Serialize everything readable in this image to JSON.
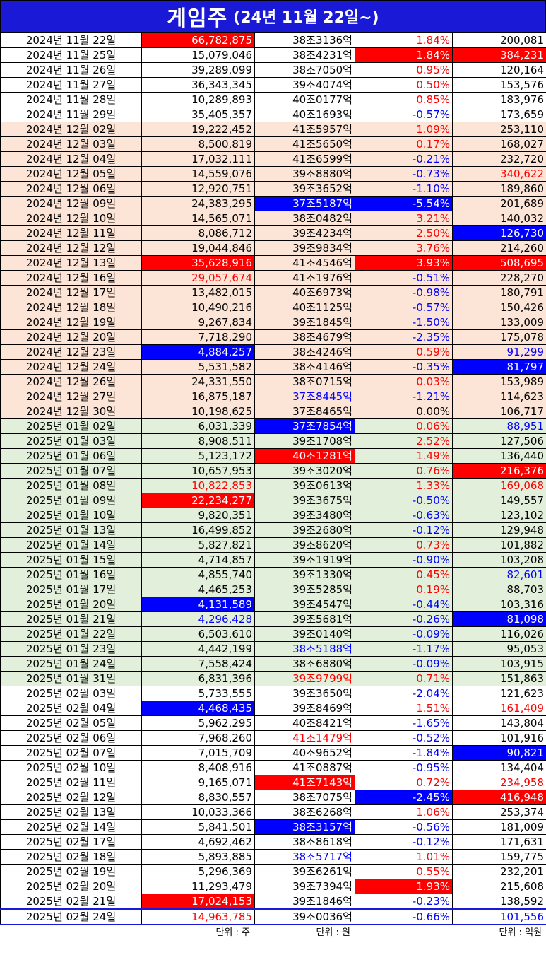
{
  "title": {
    "main": "게임주",
    "sub": "(24년 11월 22일~)"
  },
  "colors": {
    "red": "#ff0000",
    "blue": "#0000ff",
    "title_bg": "#1a1ad6",
    "peach": "#fce4d6",
    "green": "#e2efda"
  },
  "rows": [
    {
      "date": "2024년 11월 22일",
      "volume": "66,782,875",
      "cap": "38조3136억",
      "change": "1.84%",
      "amount": "200,081",
      "g": "a",
      "vs": "hl-red",
      "cs": "",
      "chs": "t-red",
      "as": ""
    },
    {
      "date": "2024년 11월 25일",
      "volume": "15,079,046",
      "cap": "38조4231억",
      "change": "1.84%",
      "amount": "384,231",
      "g": "a",
      "vs": "",
      "cs": "",
      "chs": "hl-red",
      "as": "hl-red"
    },
    {
      "date": "2024년 11월 26일",
      "volume": "39,289,099",
      "cap": "38조7050억",
      "change": "0.95%",
      "amount": "120,164",
      "g": "a",
      "vs": "",
      "cs": "",
      "chs": "t-red",
      "as": ""
    },
    {
      "date": "2024년 11월 27일",
      "volume": "36,343,345",
      "cap": "39조4074억",
      "change": "0.50%",
      "amount": "153,576",
      "g": "a",
      "vs": "",
      "cs": "",
      "chs": "t-red",
      "as": ""
    },
    {
      "date": "2024년 11월 28일",
      "volume": "10,289,893",
      "cap": "40조0177억",
      "change": "0.85%",
      "amount": "183,976",
      "g": "a",
      "vs": "",
      "cs": "",
      "chs": "t-red",
      "as": ""
    },
    {
      "date": "2024년 11월 29일",
      "volume": "35,405,357",
      "cap": "40조1693억",
      "change": "-0.57%",
      "amount": "173,659",
      "g": "a",
      "vs": "",
      "cs": "",
      "chs": "t-blue",
      "as": ""
    },
    {
      "date": "2024년 12월 02일",
      "volume": "19,222,452",
      "cap": "41조5957억",
      "change": "1.09%",
      "amount": "253,110",
      "g": "b",
      "vs": "",
      "cs": "",
      "chs": "t-red",
      "as": ""
    },
    {
      "date": "2024년 12월 03일",
      "volume": "8,500,819",
      "cap": "41조5650억",
      "change": "0.17%",
      "amount": "168,027",
      "g": "b",
      "vs": "",
      "cs": "",
      "chs": "t-red",
      "as": ""
    },
    {
      "date": "2024년 12월 04일",
      "volume": "17,032,111",
      "cap": "41조6599억",
      "change": "-0.21%",
      "amount": "232,720",
      "g": "b",
      "vs": "",
      "cs": "",
      "chs": "t-blue",
      "as": ""
    },
    {
      "date": "2024년 12월 05일",
      "volume": "14,559,076",
      "cap": "39조8880억",
      "change": "-0.73%",
      "amount": "340,622",
      "g": "b",
      "vs": "",
      "cs": "",
      "chs": "t-blue",
      "as": "t-red"
    },
    {
      "date": "2024년 12월 06일",
      "volume": "12,920,751",
      "cap": "39조3652억",
      "change": "-1.10%",
      "amount": "189,860",
      "g": "b",
      "vs": "",
      "cs": "",
      "chs": "t-blue",
      "as": ""
    },
    {
      "date": "2024년 12월 09일",
      "volume": "24,383,295",
      "cap": "37조5187억",
      "change": "-5.54%",
      "amount": "201,689",
      "g": "b",
      "vs": "",
      "cs": "hl-blue",
      "chs": "hl-blue",
      "as": ""
    },
    {
      "date": "2024년 12월 10일",
      "volume": "14,565,071",
      "cap": "38조0482억",
      "change": "3.21%",
      "amount": "140,032",
      "g": "b",
      "vs": "",
      "cs": "",
      "chs": "t-red",
      "as": ""
    },
    {
      "date": "2024년 12월 11일",
      "volume": "8,086,712",
      "cap": "39조4234억",
      "change": "2.50%",
      "amount": "126,730",
      "g": "b",
      "vs": "",
      "cs": "",
      "chs": "t-red",
      "as": "hl-blue"
    },
    {
      "date": "2024년 12월 12일",
      "volume": "19,044,846",
      "cap": "39조9834억",
      "change": "3.76%",
      "amount": "214,260",
      "g": "b",
      "vs": "",
      "cs": "",
      "chs": "t-red",
      "as": ""
    },
    {
      "date": "2024년 12월 13일",
      "volume": "35,628,916",
      "cap": "41조4546억",
      "change": "3.93%",
      "amount": "508,695",
      "g": "b",
      "vs": "hl-red",
      "cs": "",
      "chs": "hl-red",
      "as": "hl-red"
    },
    {
      "date": "2024년 12월 16일",
      "volume": "29,057,674",
      "cap": "41조1976억",
      "change": "-0.51%",
      "amount": "228,270",
      "g": "b",
      "vs": "t-red",
      "cs": "",
      "chs": "t-blue",
      "as": ""
    },
    {
      "date": "2024년 12월 17일",
      "volume": "13,482,015",
      "cap": "40조6973억",
      "change": "-0.98%",
      "amount": "180,791",
      "g": "b",
      "vs": "",
      "cs": "",
      "chs": "t-blue",
      "as": ""
    },
    {
      "date": "2024년 12월 18일",
      "volume": "10,490,216",
      "cap": "40조1125억",
      "change": "-0.57%",
      "amount": "150,426",
      "g": "b",
      "vs": "",
      "cs": "",
      "chs": "t-blue",
      "as": ""
    },
    {
      "date": "2024년 12월 19일",
      "volume": "9,267,834",
      "cap": "39조1845억",
      "change": "-1.50%",
      "amount": "133,009",
      "g": "b",
      "vs": "",
      "cs": "",
      "chs": "t-blue",
      "as": ""
    },
    {
      "date": "2024년 12월 20일",
      "volume": "7,718,290",
      "cap": "38조4679억",
      "change": "-2.35%",
      "amount": "175,078",
      "g": "b",
      "vs": "",
      "cs": "",
      "chs": "t-blue",
      "as": ""
    },
    {
      "date": "2024년 12월 23일",
      "volume": "4,884,257",
      "cap": "38조4246억",
      "change": "0.59%",
      "amount": "91,299",
      "g": "b",
      "vs": "hl-blue",
      "cs": "",
      "chs": "t-red",
      "as": "t-blue"
    },
    {
      "date": "2024년 12월 24일",
      "volume": "5,531,582",
      "cap": "38조4146억",
      "change": "-0.35%",
      "amount": "81,797",
      "g": "b",
      "vs": "",
      "cs": "",
      "chs": "t-blue",
      "as": "hl-blue"
    },
    {
      "date": "2024년 12월 26일",
      "volume": "24,331,550",
      "cap": "38조0715억",
      "change": "0.03%",
      "amount": "153,989",
      "g": "b",
      "vs": "",
      "cs": "",
      "chs": "t-red",
      "as": ""
    },
    {
      "date": "2024년 12월 27일",
      "volume": "16,875,187",
      "cap": "37조8445억",
      "change": "-1.21%",
      "amount": "114,623",
      "g": "b",
      "vs": "",
      "cs": "t-blue",
      "chs": "t-blue",
      "as": ""
    },
    {
      "date": "2024년 12월 30일",
      "volume": "10,198,625",
      "cap": "37조8465억",
      "change": "0.00%",
      "amount": "106,717",
      "g": "b",
      "vs": "",
      "cs": "",
      "chs": "",
      "as": ""
    },
    {
      "date": "2025년 01월 02일",
      "volume": "6,031,339",
      "cap": "37조7854억",
      "change": "0.06%",
      "amount": "88,951",
      "g": "c",
      "vs": "",
      "cs": "hl-blue",
      "chs": "t-red",
      "as": "t-blue"
    },
    {
      "date": "2025년 01월 03일",
      "volume": "8,908,511",
      "cap": "39조1708억",
      "change": "2.52%",
      "amount": "127,506",
      "g": "c",
      "vs": "",
      "cs": "",
      "chs": "t-red",
      "as": ""
    },
    {
      "date": "2025년 01월 06일",
      "volume": "5,123,172",
      "cap": "40조1281억",
      "change": "1.49%",
      "amount": "136,440",
      "g": "c",
      "vs": "",
      "cs": "hl-red",
      "chs": "t-red",
      "as": ""
    },
    {
      "date": "2025년 01월 07일",
      "volume": "10,657,953",
      "cap": "39조3020억",
      "change": "0.76%",
      "amount": "216,376",
      "g": "c",
      "vs": "",
      "cs": "",
      "chs": "t-red",
      "as": "hl-red"
    },
    {
      "date": "2025년 01월 08일",
      "volume": "10,822,853",
      "cap": "39조0613억",
      "change": "1.33%",
      "amount": "169,068",
      "g": "c",
      "vs": "t-red",
      "cs": "",
      "chs": "t-red",
      "as": "t-red"
    },
    {
      "date": "2025년 01월 09일",
      "volume": "22,234,277",
      "cap": "39조3675억",
      "change": "-0.50%",
      "amount": "149,557",
      "g": "c",
      "vs": "hl-red",
      "cs": "",
      "chs": "t-blue",
      "as": ""
    },
    {
      "date": "2025년 01월 10일",
      "volume": "9,820,351",
      "cap": "39조3480억",
      "change": "-0.63%",
      "amount": "123,102",
      "g": "c",
      "vs": "",
      "cs": "",
      "chs": "t-blue",
      "as": ""
    },
    {
      "date": "2025년 01월 13일",
      "volume": "16,499,852",
      "cap": "39조2680억",
      "change": "-0.12%",
      "amount": "129,948",
      "g": "c",
      "vs": "",
      "cs": "",
      "chs": "t-blue",
      "as": ""
    },
    {
      "date": "2025년 01월 14일",
      "volume": "5,827,821",
      "cap": "39조8620억",
      "change": "0.73%",
      "amount": "101,882",
      "g": "c",
      "vs": "",
      "cs": "",
      "chs": "t-red",
      "as": ""
    },
    {
      "date": "2025년 01월 15일",
      "volume": "4,714,857",
      "cap": "39조1919억",
      "change": "-0.90%",
      "amount": "103,208",
      "g": "c",
      "vs": "",
      "cs": "",
      "chs": "t-blue",
      "as": ""
    },
    {
      "date": "2025년 01월 16일",
      "volume": "4,855,740",
      "cap": "39조1330억",
      "change": "0.45%",
      "amount": "82,601",
      "g": "c",
      "vs": "",
      "cs": "",
      "chs": "t-red",
      "as": "t-blue"
    },
    {
      "date": "2025년 01월 17일",
      "volume": "4,465,253",
      "cap": "39조5285억",
      "change": "0.19%",
      "amount": "88,703",
      "g": "c",
      "vs": "",
      "cs": "",
      "chs": "t-red",
      "as": ""
    },
    {
      "date": "2025년 01월 20일",
      "volume": "4,131,589",
      "cap": "39조4547억",
      "change": "-0.44%",
      "amount": "103,316",
      "g": "c",
      "vs": "hl-blue",
      "cs": "",
      "chs": "t-blue",
      "as": ""
    },
    {
      "date": "2025년 01월 21일",
      "volume": "4,296,428",
      "cap": "39조5681억",
      "change": "-0.26%",
      "amount": "81,098",
      "g": "c",
      "vs": "t-blue",
      "cs": "",
      "chs": "t-blue",
      "as": "hl-blue"
    },
    {
      "date": "2025년 01월 22일",
      "volume": "6,503,610",
      "cap": "39조0140억",
      "change": "-0.09%",
      "amount": "116,026",
      "g": "c",
      "vs": "",
      "cs": "",
      "chs": "t-blue",
      "as": ""
    },
    {
      "date": "2025년 01월 23일",
      "volume": "4,442,199",
      "cap": "38조5188억",
      "change": "-1.17%",
      "amount": "95,053",
      "g": "c",
      "vs": "",
      "cs": "t-blue",
      "chs": "t-blue",
      "as": ""
    },
    {
      "date": "2025년 01월 24일",
      "volume": "7,558,424",
      "cap": "38조6880억",
      "change": "-0.09%",
      "amount": "103,915",
      "g": "c",
      "vs": "",
      "cs": "",
      "chs": "t-blue",
      "as": ""
    },
    {
      "date": "2025년 01월 31일",
      "volume": "6,831,396",
      "cap": "39조9799억",
      "change": "0.71%",
      "amount": "151,863",
      "g": "c",
      "vs": "",
      "cs": "t-red",
      "chs": "t-red",
      "as": ""
    },
    {
      "date": "2025년 02월 03일",
      "volume": "5,733,555",
      "cap": "39조3650억",
      "change": "-2.04%",
      "amount": "121,623",
      "g": "d",
      "vs": "",
      "cs": "",
      "chs": "t-blue",
      "as": ""
    },
    {
      "date": "2025년 02월 04일",
      "volume": "4,468,435",
      "cap": "39조8469억",
      "change": "1.51%",
      "amount": "161,409",
      "g": "d",
      "vs": "hl-blue",
      "cs": "",
      "chs": "t-red",
      "as": "t-red"
    },
    {
      "date": "2025년 02월 05일",
      "volume": "5,962,295",
      "cap": "40조8421억",
      "change": "-1.65%",
      "amount": "143,804",
      "g": "d",
      "vs": "",
      "cs": "",
      "chs": "t-blue",
      "as": ""
    },
    {
      "date": "2025년 02월 06일",
      "volume": "7,968,260",
      "cap": "41조1479억",
      "change": "-0.52%",
      "amount": "101,916",
      "g": "d",
      "vs": "",
      "cs": "t-red",
      "chs": "t-blue",
      "as": ""
    },
    {
      "date": "2025년 02월 07일",
      "volume": "7,015,709",
      "cap": "40조9652억",
      "change": "-1.84%",
      "amount": "90,821",
      "g": "d",
      "vs": "",
      "cs": "",
      "chs": "t-blue",
      "as": "hl-blue"
    },
    {
      "date": "2025년 02월 10일",
      "volume": "8,408,916",
      "cap": "41조0887억",
      "change": "-0.95%",
      "amount": "134,404",
      "g": "d",
      "vs": "",
      "cs": "",
      "chs": "t-blue",
      "as": ""
    },
    {
      "date": "2025년 02월 11일",
      "volume": "9,165,071",
      "cap": "41조7143억",
      "change": "0.72%",
      "amount": "234,958",
      "g": "d",
      "vs": "",
      "cs": "hl-red",
      "chs": "t-red",
      "as": "t-red"
    },
    {
      "date": "2025년 02월 12일",
      "volume": "8,830,557",
      "cap": "38조7075억",
      "change": "-2.45%",
      "amount": "416,948",
      "g": "d",
      "vs": "",
      "cs": "",
      "chs": "hl-blue",
      "as": "hl-red"
    },
    {
      "date": "2025년 02월 13일",
      "volume": "10,033,366",
      "cap": "38조6268억",
      "change": "1.06%",
      "amount": "253,374",
      "g": "d",
      "vs": "",
      "cs": "",
      "chs": "t-red",
      "as": ""
    },
    {
      "date": "2025년 02월 14일",
      "volume": "5,841,501",
      "cap": "38조3157억",
      "change": "-0.56%",
      "amount": "181,009",
      "g": "d",
      "vs": "",
      "cs": "hl-blue",
      "chs": "t-blue",
      "as": ""
    },
    {
      "date": "2025년 02월 17일",
      "volume": "4,692,462",
      "cap": "38조8618억",
      "change": "-0.12%",
      "amount": "171,631",
      "g": "d",
      "vs": "",
      "cs": "",
      "chs": "t-blue",
      "as": ""
    },
    {
      "date": "2025년 02월 18일",
      "volume": "5,893,885",
      "cap": "38조5717억",
      "change": "1.01%",
      "amount": "159,775",
      "g": "d",
      "vs": "",
      "cs": "t-blue",
      "chs": "t-red",
      "as": ""
    },
    {
      "date": "2025년 02월 19일",
      "volume": "5,296,369",
      "cap": "39조6261억",
      "change": "0.55%",
      "amount": "232,201",
      "g": "d",
      "vs": "",
      "cs": "",
      "chs": "t-red",
      "as": ""
    },
    {
      "date": "2025년 02월 20일",
      "volume": "11,293,479",
      "cap": "39조7394억",
      "change": "1.93%",
      "amount": "215,608",
      "g": "d",
      "vs": "",
      "cs": "",
      "chs": "hl-red",
      "as": ""
    },
    {
      "date": "2025년 02월 21일",
      "volume": "17,024,153",
      "cap": "39조1846억",
      "change": "-0.23%",
      "amount": "138,592",
      "g": "d",
      "vs": "hl-red",
      "cs": "",
      "chs": "t-blue",
      "as": ""
    },
    {
      "date": "2025년 02월 24일",
      "volume": "14,963,785",
      "cap": "39조0036억",
      "change": "-0.66%",
      "amount": "101,556",
      "g": "d",
      "vs": "t-red",
      "cs": "",
      "chs": "t-blue",
      "as": "t-blue"
    }
  ],
  "footer": {
    "volume_unit": "단위 : 주",
    "cap_unit": "단위 : 원",
    "amount_unit": "단위 : 억원"
  }
}
